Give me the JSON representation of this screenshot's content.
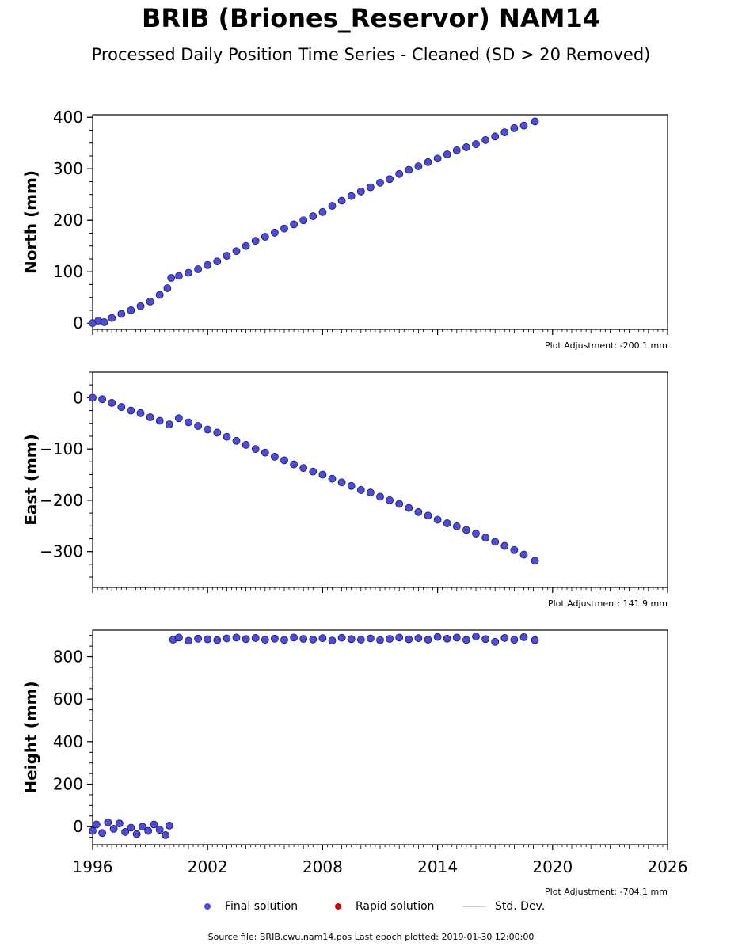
{
  "header": {
    "title": "BRIB (Briones_Reservor) NAM14",
    "subtitle": "Processed Daily Position Time Series - Cleaned (SD > 20 Removed)"
  },
  "chart_data": [
    {
      "type": "scatter",
      "ylabel": "North (mm)",
      "xlabel": "",
      "xlim": [
        1996,
        2026
      ],
      "ylim": [
        -12,
        405
      ],
      "yticks": [
        0,
        100,
        200,
        300,
        400
      ],
      "adjustment_label": "Plot Adjustment: -200.1 mm",
      "color": "#4b4be8",
      "series": [
        {
          "name": "Final solution",
          "x": [
            1996.0,
            1996.3,
            1996.6,
            1997.0,
            1997.5,
            1998.0,
            1998.5,
            1999.0,
            1999.5,
            1999.9,
            2000.1,
            2000.5,
            2001.0,
            2001.5,
            2002.0,
            2002.5,
            2003.0,
            2003.5,
            2004.0,
            2004.5,
            2005.0,
            2005.5,
            2006.0,
            2006.5,
            2007.0,
            2007.5,
            2008.0,
            2008.5,
            2009.0,
            2009.5,
            2010.0,
            2010.5,
            2011.0,
            2011.5,
            2012.0,
            2012.5,
            2013.0,
            2013.5,
            2014.0,
            2014.5,
            2015.0,
            2015.5,
            2016.0,
            2016.5,
            2017.0,
            2017.5,
            2018.0,
            2018.5,
            2019.08
          ],
          "y": [
            0,
            5,
            2,
            10,
            18,
            25,
            33,
            42,
            55,
            68,
            88,
            92,
            98,
            105,
            113,
            120,
            131,
            140,
            150,
            160,
            168,
            176,
            184,
            192,
            200,
            208,
            216,
            228,
            238,
            247,
            256,
            264,
            273,
            280,
            290,
            298,
            305,
            313,
            320,
            328,
            336,
            342,
            348,
            356,
            363,
            371,
            379,
            384,
            392
          ]
        }
      ]
    },
    {
      "type": "scatter",
      "ylabel": "East (mm)",
      "xlabel": "",
      "xlim": [
        1996,
        2026
      ],
      "ylim": [
        -370,
        50
      ],
      "yticks": [
        0,
        -100,
        -200,
        -300
      ],
      "adjustment_label": "Plot Adjustment: 141.9 mm",
      "color": "#4b4be8",
      "series": [
        {
          "name": "Final solution",
          "x": [
            1996.0,
            1996.5,
            1997.0,
            1997.5,
            1998.0,
            1998.5,
            1999.0,
            1999.5,
            2000.0,
            2000.5,
            2001.0,
            2001.5,
            2002.0,
            2002.5,
            2003.0,
            2003.5,
            2004.0,
            2004.5,
            2005.0,
            2005.5,
            2006.0,
            2006.5,
            2007.0,
            2007.5,
            2008.0,
            2008.5,
            2009.0,
            2009.5,
            2010.0,
            2010.5,
            2011.0,
            2011.5,
            2012.0,
            2012.5,
            2013.0,
            2013.5,
            2014.0,
            2014.5,
            2015.0,
            2015.5,
            2016.0,
            2016.5,
            2017.0,
            2017.5,
            2018.0,
            2018.5,
            2019.08
          ],
          "y": [
            0,
            -3,
            -10,
            -18,
            -25,
            -30,
            -38,
            -45,
            -52,
            -40,
            -48,
            -55,
            -62,
            -68,
            -76,
            -84,
            -92,
            -100,
            -107,
            -115,
            -122,
            -130,
            -137,
            -144,
            -150,
            -158,
            -165,
            -172,
            -180,
            -185,
            -193,
            -200,
            -207,
            -215,
            -223,
            -230,
            -238,
            -245,
            -251,
            -258,
            -265,
            -273,
            -281,
            -289,
            -297,
            -306,
            -318
          ]
        }
      ]
    },
    {
      "type": "scatter",
      "ylabel": "Height (mm)",
      "xlabel": "",
      "xlim": [
        1996,
        2026
      ],
      "ylim": [
        -85,
        925
      ],
      "yticks": [
        0,
        200,
        400,
        600,
        800
      ],
      "xticks": [
        "1996",
        "2002",
        "2008",
        "2014",
        "2020",
        "2026"
      ],
      "adjustment_label": "Plot Adjustment: -704.1 mm",
      "color": "#4b4be8",
      "series": [
        {
          "name": "Final solution",
          "x": [
            1996.0,
            1996.2,
            1996.5,
            1996.8,
            1997.1,
            1997.4,
            1997.7,
            1998.0,
            1998.3,
            1998.6,
            1998.9,
            1999.2,
            1999.5,
            1999.8,
            2000.0,
            2000.2,
            2000.5,
            2001.0,
            2001.5,
            2002.0,
            2002.5,
            2003.0,
            2003.5,
            2004.0,
            2004.5,
            2005.0,
            2005.5,
            2006.0,
            2006.5,
            2007.0,
            2007.5,
            2008.0,
            2008.5,
            2009.0,
            2009.5,
            2010.0,
            2010.5,
            2011.0,
            2011.5,
            2012.0,
            2012.5,
            2013.0,
            2013.5,
            2014.0,
            2014.5,
            2015.0,
            2015.5,
            2016.0,
            2016.5,
            2017.0,
            2017.5,
            2018.0,
            2018.5,
            2019.08
          ],
          "y": [
            -20,
            10,
            -30,
            20,
            -10,
            15,
            -25,
            -5,
            -35,
            0,
            -20,
            10,
            -15,
            -40,
            5,
            880,
            890,
            875,
            885,
            882,
            878,
            886,
            890,
            883,
            888,
            880,
            885,
            879,
            890,
            884,
            881,
            887,
            876,
            889,
            883,
            880,
            886,
            878,
            884,
            890,
            882,
            887,
            880,
            893,
            885,
            890,
            879,
            895,
            883,
            870,
            888,
            880,
            892,
            878
          ]
        }
      ]
    }
  ],
  "legend": {
    "final_label": "Final solution",
    "rapid_label": "Rapid solution",
    "std_label": "Std. Dev.",
    "final_color": "#4b4be8",
    "rapid_color": "#dd0000",
    "std_color": "#cccccc"
  },
  "footer": {
    "source_text": "Source file: BRIB.cwu.nam14.pos  Last epoch plotted: 2019-01-30 12:00:00"
  }
}
